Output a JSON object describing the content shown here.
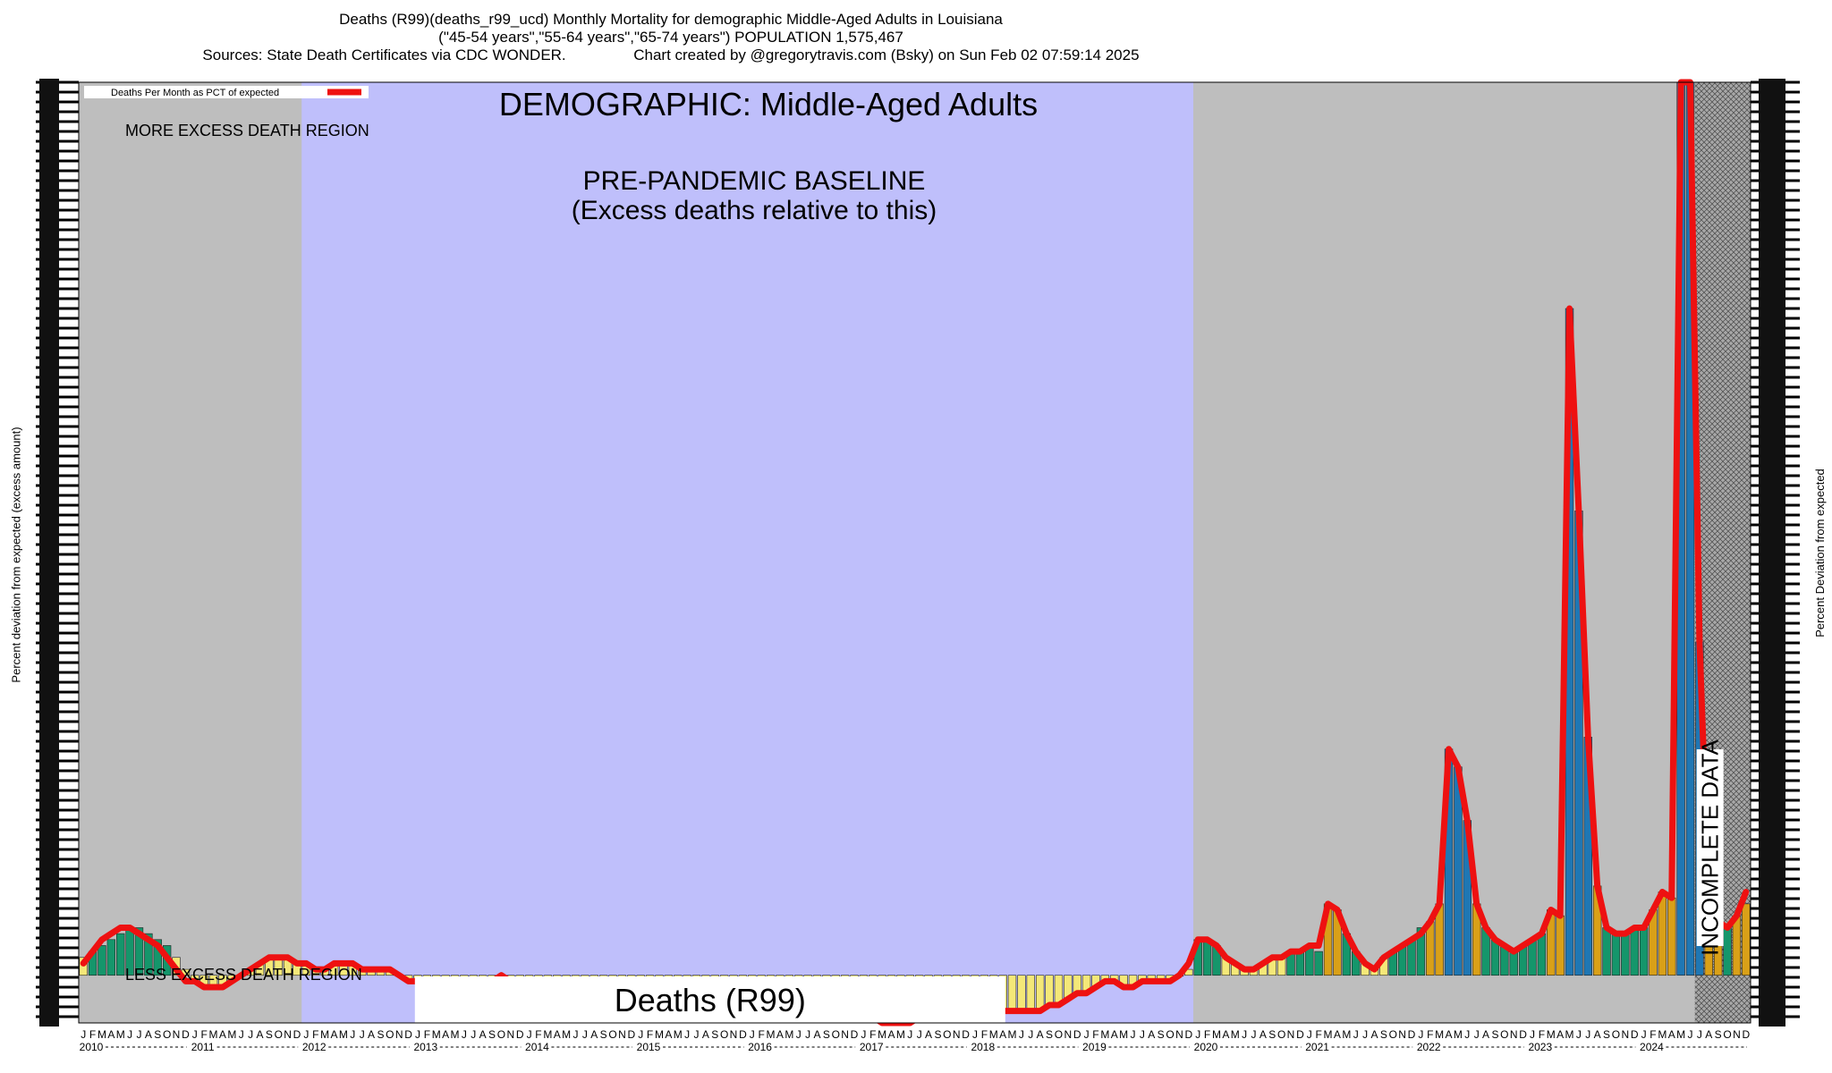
{
  "header": {
    "line1": "Deaths (R99)(deaths_r99_ucd) Monthly Mortality for demographic Middle-Aged Adults in Louisiana",
    "line2": "(\"45-54 years\",\"55-64 years\",\"65-74 years\") POPULATION 1,575,467",
    "line3": "Sources: State Death Certificates via CDC WONDER.                Chart created by @gregorytravis.com (Bsky) on Sun Feb 02 07:59:14 2025"
  },
  "chart_data": {
    "type": "bar",
    "legend": "Deaths Per Month as PCT of expected",
    "legend_position": "top-left",
    "ylabel_left": "Percent deviation from expected (excess amount)",
    "ylabel_right": "Percent Deviation from expected",
    "demographic": "DEMOGRAPHIC: Middle-Aged Adults",
    "baseline_label_1": "PRE-PANDEMIC BASELINE",
    "baseline_label_2": "(Excess deaths relative to this)",
    "more_label": "MORE EXCESS DEATH REGION",
    "less_label": "LESS EXCESS DEATH REGION",
    "incomplete_label": "INCOMPLETE DATA",
    "caption": "Deaths (R99)",
    "month_letters": [
      "J",
      "F",
      "M",
      "A",
      "M",
      "J",
      "J",
      "A",
      "S",
      "O",
      "N",
      "D"
    ],
    "years": [
      "2010",
      "2011",
      "2012",
      "2013",
      "2014",
      "2015",
      "2016",
      "2017",
      "2018",
      "2019",
      "2020",
      "2021",
      "2022",
      "2023",
      "2024"
    ],
    "baseline_years": [
      "2012",
      "2019"
    ],
    "incomplete_from": "2024-07",
    "series": [
      {
        "name": "Deaths Per Month as PCT of expected",
        "values": [
          3,
          4,
          5,
          6,
          7,
          8,
          8,
          7,
          6,
          5,
          3,
          1,
          -1,
          -2,
          -2,
          -2,
          -1,
          0,
          1,
          2,
          3,
          3,
          3,
          2,
          2,
          1,
          1,
          2,
          2,
          2,
          1,
          1,
          1,
          1,
          0,
          -1,
          -1,
          -1,
          -2,
          -2,
          -3,
          -3,
          -2,
          -1,
          -1,
          0,
          -1,
          -1,
          -2,
          -2,
          -3,
          -3,
          -4,
          -4,
          -4,
          -3,
          -3,
          -3,
          -3,
          -2,
          -4,
          -5,
          -6,
          -6,
          -7,
          -7,
          -6,
          -5,
          -4,
          -4,
          -5,
          -6,
          -6,
          -6,
          -6,
          -5,
          -5,
          -6,
          -7,
          -7,
          -7,
          -6,
          -6,
          -6,
          -7,
          -7,
          -8,
          -8,
          -8,
          -8,
          -7,
          -6,
          -6,
          -7,
          -7,
          -7,
          -7,
          -7,
          -7,
          -6,
          -6,
          -6,
          -6,
          -6,
          -5,
          -5,
          -4,
          -3,
          -3,
          -2,
          -1,
          -1,
          -2,
          -2,
          -1,
          -1,
          -1,
          -1,
          0,
          1,
          6,
          6,
          5,
          3,
          2,
          1,
          1,
          2,
          3,
          3,
          4,
          4,
          5,
          4,
          12,
          11,
          7,
          4,
          2,
          1,
          3,
          4,
          5,
          6,
          8,
          9,
          12,
          38,
          35,
          26,
          12,
          8,
          6,
          5,
          4,
          5,
          6,
          7,
          11,
          10,
          112,
          78,
          40,
          15,
          8,
          7,
          7,
          8,
          8,
          11,
          14,
          13,
          150,
          150,
          56,
          13,
          9,
          8,
          10,
          12
        ],
        "line": [
          2,
          4,
          6,
          7,
          8,
          8,
          7,
          6,
          5,
          3,
          1,
          -1,
          -1,
          -2,
          -2,
          -2,
          -1,
          0,
          1,
          2,
          3,
          3,
          3,
          2,
          2,
          1,
          1,
          2,
          2,
          2,
          1,
          1,
          1,
          1,
          0,
          -1,
          -1,
          -1,
          -2,
          -2,
          -3,
          -3,
          -2,
          -1,
          -1,
          0,
          -1,
          -1,
          -2,
          -2,
          -3,
          -3,
          -4,
          -4,
          -4,
          -3,
          -3,
          -3,
          -3,
          -2,
          -4,
          -5,
          -6,
          -6,
          -7,
          -7,
          -6,
          -5,
          -4,
          -4,
          -5,
          -6,
          -6,
          -6,
          -6,
          -5,
          -5,
          -6,
          -7,
          -7,
          -7,
          -6,
          -6,
          -6,
          -7,
          -7,
          -8,
          -8,
          -8,
          -8,
          -7,
          -6,
          -6,
          -7,
          -7,
          -7,
          -7,
          -7,
          -7,
          -6,
          -6,
          -6,
          -6,
          -6,
          -5,
          -5,
          -4,
          -3,
          -3,
          -2,
          -1,
          -1,
          -2,
          -2,
          -1,
          -1,
          -1,
          -1,
          0,
          2,
          6,
          6,
          5,
          3,
          2,
          1,
          1,
          2,
          3,
          3,
          4,
          4,
          5,
          5,
          12,
          11,
          7,
          4,
          2,
          1,
          3,
          4,
          5,
          6,
          7,
          9,
          12,
          38,
          35,
          26,
          12,
          8,
          6,
          5,
          4,
          5,
          6,
          7,
          11,
          10,
          112,
          78,
          40,
          15,
          8,
          7,
          7,
          8,
          8,
          11,
          14,
          13,
          150,
          150,
          56,
          13,
          9,
          8,
          10,
          14
        ]
      }
    ],
    "colors": {
      "more_region": "#bebebe",
      "baseline_region": "#bfbffb",
      "line": "#ee1111",
      "bar_high": "#1f77b4",
      "bar_mid": "#d9a018",
      "bar_green": "#15966b",
      "bar_low": "#f4e878",
      "incomplete": "#a8a8a8"
    },
    "ylim": [
      -8,
      150
    ],
    "grid": false
  }
}
